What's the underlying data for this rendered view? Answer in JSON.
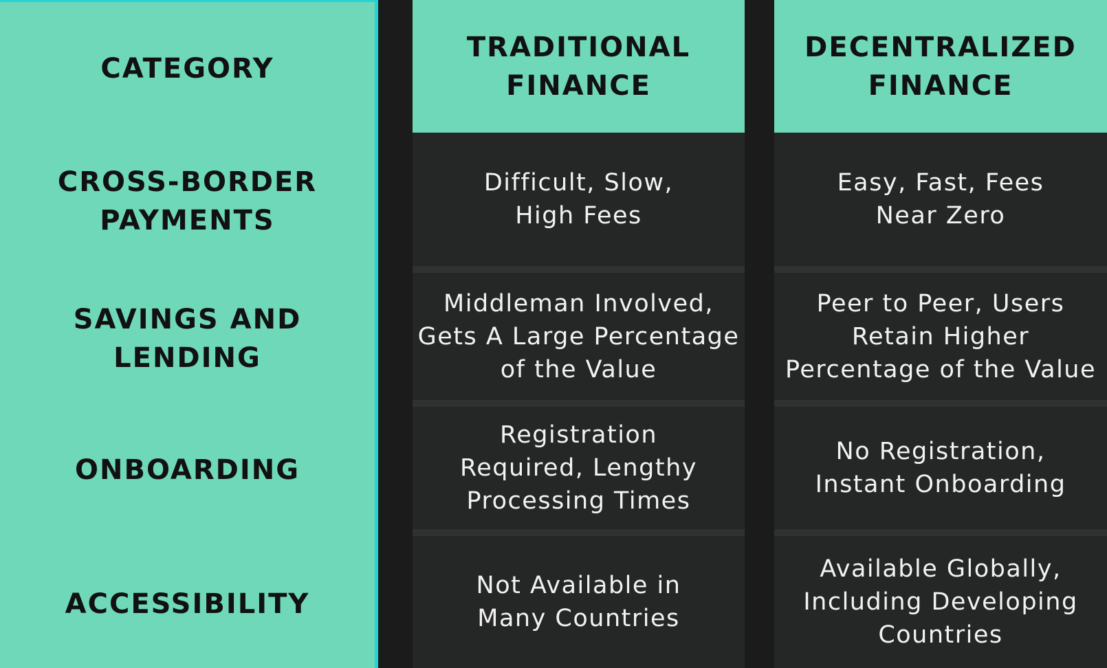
{
  "columns": {
    "category_header": "CATEGORY",
    "traditional_header": "TRADITIONAL\nFINANCE",
    "decentralized_header": "DECENTRALIZED\nFINANCE"
  },
  "rows": [
    {
      "category": "CROSS-BORDER\nPAYMENTS",
      "traditional": "Difficult, Slow,\nHigh Fees",
      "decentralized": "Easy, Fast, Fees\nNear Zero"
    },
    {
      "category": "SAVINGS AND\nLENDING",
      "traditional": "Middleman Involved,\nGets A Large Percentage\nof the Value",
      "decentralized": "Peer to Peer, Users\nRetain Higher\nPercentage of the Value"
    },
    {
      "category": "ONBOARDING",
      "traditional": "Registration\nRequired, Lengthy\nProcessing Times",
      "decentralized": "No Registration,\nInstant Onboarding"
    },
    {
      "category": "ACCESSIBILITY",
      "traditional": "Not Available in\nMany Countries",
      "decentralized": "Available Globally,\nIncluding Developing\nCountries"
    }
  ],
  "colors": {
    "header_green": "#6fd8b8",
    "border_cyan": "#25d3d6",
    "cell_dark": "#252626",
    "background": "#1b1b1b"
  }
}
